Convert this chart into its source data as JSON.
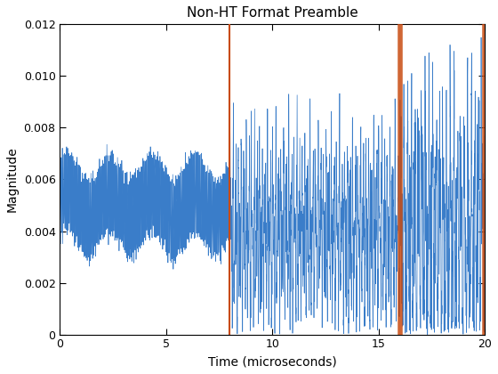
{
  "title": "Non-HT Format Preamble",
  "xlabel": "Time (microseconds)",
  "ylabel": "Magnitude",
  "xlim": [
    0,
    20
  ],
  "ylim": [
    0,
    0.012
  ],
  "xticks": [
    0,
    5,
    10,
    15,
    20
  ],
  "yticks": [
    0,
    0.002,
    0.004,
    0.006,
    0.008,
    0.01,
    0.012
  ],
  "vline1": 8.0,
  "vline2": 16.0,
  "vline_color": "#C84B11",
  "signal_color": "#3A7DC9",
  "background_color": "#ffffff",
  "title_fontsize": 11,
  "label_fontsize": 10,
  "tick_fontsize": 9,
  "figsize": [
    5.6,
    4.2
  ],
  "dpi": 100
}
